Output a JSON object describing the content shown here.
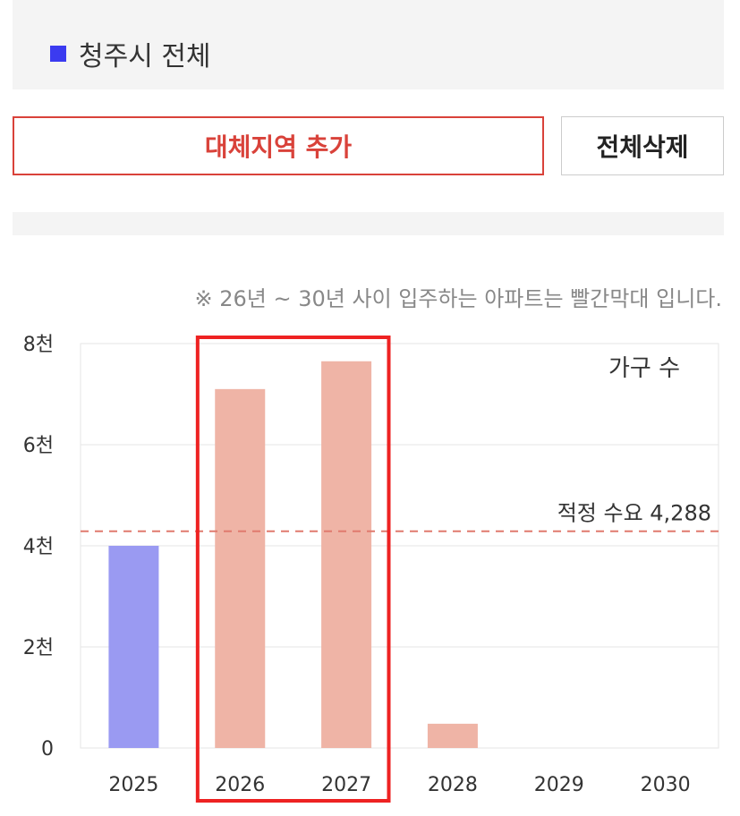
{
  "region": {
    "label": "청주시 전체",
    "swatch_color": "#3b3bf0"
  },
  "buttons": {
    "add_label": "대체지역 추가",
    "clear_label": "전체삭제"
  },
  "note": "※ 26년 ~ 30년 사이 입주하는 아파트는 빨간막대 입니다.",
  "chart_data": {
    "type": "bar",
    "categories": [
      "2025",
      "2026",
      "2027",
      "2028",
      "2029",
      "2030"
    ],
    "values": [
      4000,
      7100,
      7650,
      480,
      0,
      0
    ],
    "bar_colors": [
      "#9a9af2",
      "#efb4a6",
      "#efb4a6",
      "#efb4a6",
      "#efb4a6",
      "#efb4a6"
    ],
    "ylim": [
      0,
      8000
    ],
    "yticks": [
      0,
      2000,
      4000,
      6000,
      8000
    ],
    "ytick_labels": [
      "0",
      "2천",
      "4천",
      "6천",
      "8천"
    ],
    "unit_label": "가구 수",
    "reference_line": {
      "value": 4288,
      "label": "적정 수요 4,288",
      "color": "#e07a6e"
    },
    "highlight": {
      "categories": [
        "2026",
        "2027"
      ],
      "color": "#ee2222"
    },
    "grid": true
  }
}
